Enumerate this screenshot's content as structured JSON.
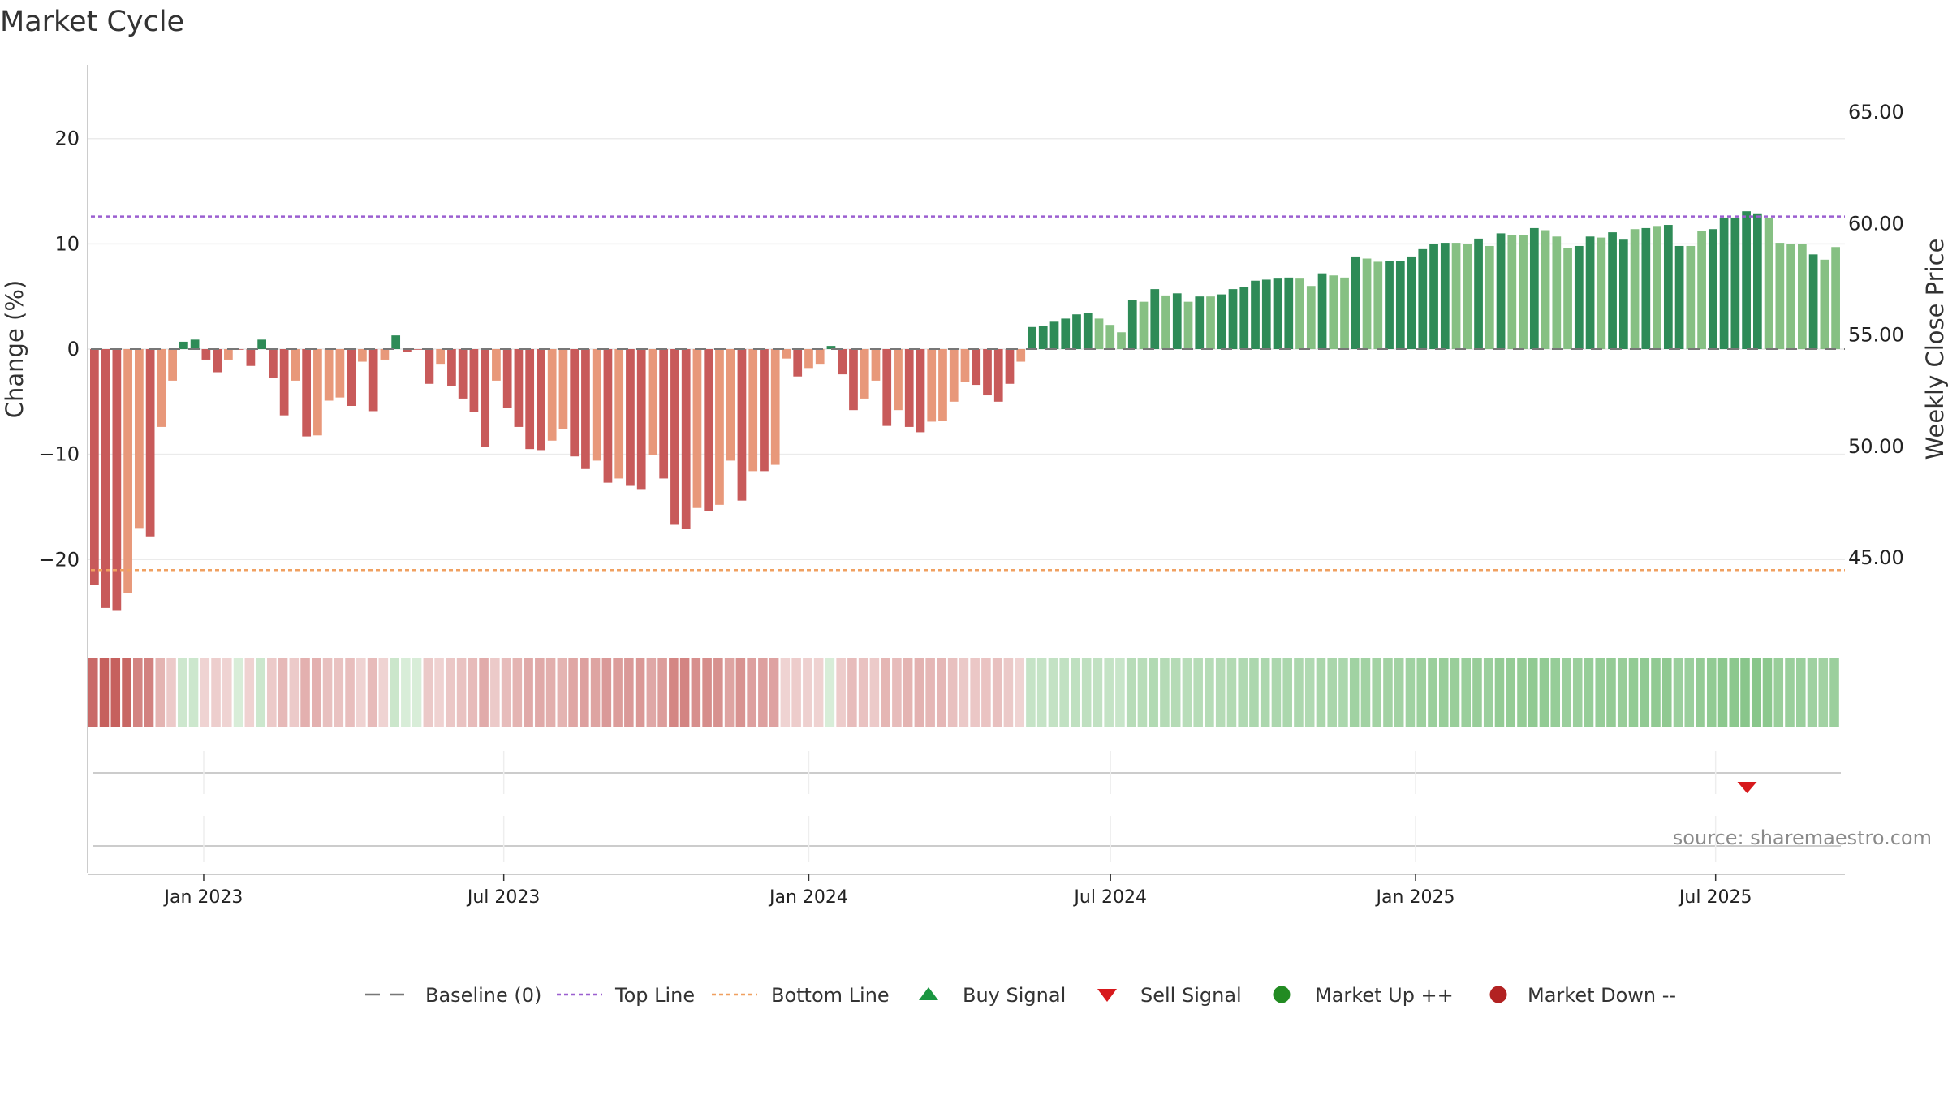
{
  "chart_data": {
    "type": "bar",
    "title": "Market Cycle",
    "ylabel_left": "Change (%)",
    "ylabel_right": "Weekly Close Price",
    "ylim_left": [
      -27,
      27
    ],
    "yticks_left": [
      20,
      10,
      0,
      -10,
      -20
    ],
    "ytick_labels_left": [
      "20",
      "10",
      "0",
      "−10",
      "−20"
    ],
    "ylim_right": [
      41.62,
      67.12
    ],
    "yticks_right": [
      65,
      60,
      55,
      50,
      45
    ],
    "ytick_labels_right": [
      "65.00",
      "60.00",
      "55.00",
      "50.00",
      "45.00"
    ],
    "top_line": 12.6,
    "bottom_line": -21.0,
    "baseline": 0,
    "date_range": [
      "2022-10-23",
      "2025-09-17"
    ],
    "x_ticks": [
      {
        "date": "2023-01-01",
        "label": "Jan 2023"
      },
      {
        "date": "2023-07-01",
        "label": "Jul 2023"
      },
      {
        "date": "2024-01-01",
        "label": "Jan 2024"
      },
      {
        "date": "2024-07-01",
        "label": "Jul 2024"
      },
      {
        "date": "2025-01-01",
        "label": "Jan 2025"
      },
      {
        "date": "2025-07-01",
        "label": "Jul 2025"
      }
    ],
    "first_week": "2022-10-23",
    "week_values": [
      -22.4,
      -24.6,
      -24.8,
      -23.2,
      -17.0,
      -17.8,
      -7.4,
      -3.0,
      0.7,
      0.9,
      -1.0,
      -2.2,
      -1.0,
      0.0,
      -1.6,
      0.9,
      -2.7,
      -6.3,
      -3.0,
      -8.3,
      -8.2,
      -4.9,
      -4.6,
      -5.4,
      -1.2,
      -5.9,
      -1.0,
      1.3,
      -0.3,
      0.0,
      -3.3,
      -1.4,
      -3.5,
      -4.7,
      -6.0,
      -9.3,
      -3.0,
      -5.6,
      -7.4,
      -9.5,
      -9.6,
      -8.7,
      -7.6,
      -10.2,
      -11.4,
      -10.6,
      -12.7,
      -12.3,
      -13.0,
      -13.3,
      -10.1,
      -12.3,
      -16.7,
      -17.1,
      -15.1,
      -15.4,
      -14.8,
      -10.6,
      -14.4,
      -11.6,
      -11.6,
      -11.0,
      -0.9,
      -2.6,
      -1.8,
      -1.4,
      0.3,
      -2.4,
      -5.8,
      -4.7,
      -3.0,
      -7.3,
      -5.8,
      -7.4,
      -7.9,
      -6.9,
      -6.8,
      -5.0,
      -3.1,
      -3.4,
      -4.4,
      -5.0,
      -3.3,
      -1.2,
      2.1,
      2.2,
      2.6,
      2.9,
      3.3,
      3.4,
      2.9,
      2.3,
      1.6,
      4.7,
      4.5,
      5.7,
      5.1,
      5.3,
      4.5,
      5.0,
      5.0,
      5.2,
      5.7,
      5.9,
      6.5,
      6.6,
      6.7,
      6.8,
      6.7,
      6.0,
      7.2,
      7.0,
      6.8,
      8.8,
      8.6,
      8.3,
      8.4,
      8.4,
      8.8,
      9.5,
      10.0,
      10.1,
      10.1,
      10.0,
      10.5,
      9.8,
      11.0,
      10.8,
      10.8,
      11.5,
      11.3,
      10.7,
      9.6,
      9.8,
      10.7,
      10.6,
      11.1,
      10.4,
      11.4,
      11.5,
      11.7,
      11.8,
      9.8,
      9.8,
      11.2,
      11.4,
      12.5,
      12.5,
      13.1,
      12.9,
      12.5,
      10.1,
      10.0,
      10.0,
      9.0,
      8.5,
      9.7
    ],
    "week_colors": [
      "#c85a5a",
      "#c85a5a",
      "#c85a5a",
      "#e8987a",
      "#e8987a",
      "#c85a5a",
      "#e8987a",
      "#e8987a",
      "#2e8b57",
      "#2e8b57",
      "#c85a5a",
      "#c85a5a",
      "#e8987a",
      "#c85a5a",
      "#c85a5a",
      "#2e8b57",
      "#c85a5a",
      "#c85a5a",
      "#e8987a",
      "#c85a5a",
      "#e8987a",
      "#e8987a",
      "#e8987a",
      "#c85a5a",
      "#e8987a",
      "#c85a5a",
      "#e8987a",
      "#2e8b57",
      "#c85a5a",
      "#c85a5a",
      "#c85a5a",
      "#e8987a",
      "#c85a5a",
      "#c85a5a",
      "#c85a5a",
      "#c85a5a",
      "#e8987a",
      "#c85a5a",
      "#c85a5a",
      "#c85a5a",
      "#c85a5a",
      "#e8987a",
      "#e8987a",
      "#c85a5a",
      "#c85a5a",
      "#e8987a",
      "#c85a5a",
      "#e8987a",
      "#c85a5a",
      "#c85a5a",
      "#e8987a",
      "#c85a5a",
      "#c85a5a",
      "#c85a5a",
      "#e8987a",
      "#c85a5a",
      "#e8987a",
      "#e8987a",
      "#c85a5a",
      "#e8987a",
      "#c85a5a",
      "#e8987a",
      "#e8987a",
      "#c85a5a",
      "#e8987a",
      "#e8987a",
      "#2e8b57",
      "#c85a5a",
      "#c85a5a",
      "#e8987a",
      "#e8987a",
      "#c85a5a",
      "#e8987a",
      "#c85a5a",
      "#c85a5a",
      "#e8987a",
      "#e8987a",
      "#e8987a",
      "#e8987a",
      "#c85a5a",
      "#c85a5a",
      "#c85a5a",
      "#c85a5a",
      "#e8987a",
      "#2e8b57",
      "#2e8b57",
      "#2e8b57",
      "#2e8b57",
      "#2e8b57",
      "#2e8b57",
      "#86c083",
      "#86c083",
      "#86c083",
      "#2e8b57",
      "#86c083",
      "#2e8b57",
      "#86c083",
      "#2e8b57",
      "#86c083",
      "#2e8b57",
      "#86c083",
      "#2e8b57",
      "#2e8b57",
      "#2e8b57",
      "#2e8b57",
      "#2e8b57",
      "#2e8b57",
      "#2e8b57",
      "#86c083",
      "#86c083",
      "#2e8b57",
      "#86c083",
      "#86c083",
      "#2e8b57",
      "#86c083",
      "#86c083",
      "#2e8b57",
      "#2e8b57",
      "#2e8b57",
      "#2e8b57",
      "#2e8b57",
      "#2e8b57",
      "#86c083",
      "#86c083",
      "#2e8b57",
      "#86c083",
      "#2e8b57",
      "#86c083",
      "#86c083",
      "#2e8b57",
      "#86c083",
      "#86c083",
      "#86c083",
      "#2e8b57",
      "#2e8b57",
      "#86c083",
      "#2e8b57",
      "#2e8b57",
      "#86c083",
      "#2e8b57",
      "#86c083",
      "#2e8b57",
      "#2e8b57",
      "#86c083",
      "#86c083",
      "#2e8b57",
      "#2e8b57",
      "#2e8b57",
      "#2e8b57",
      "#2e8b57",
      "#86c083",
      "#86c083",
      "#86c083",
      "#86c083",
      "#2e8b57",
      "#86c083",
      "#86c083",
      "#2e8b57"
    ],
    "sell_signals": [
      {
        "date": "2025-07-20"
      }
    ],
    "buy_signals": [],
    "series": [
      {
        "name": "Baseline (0)",
        "color": "#777777",
        "style": "dashed"
      },
      {
        "name": "Top Line",
        "color": "#9b5fd0",
        "style": "dotted"
      },
      {
        "name": "Bottom Line",
        "color": "#f0a060",
        "style": "dotted"
      },
      {
        "name": "Buy Signal",
        "color": "#1a9641",
        "marker": "triangle-up"
      },
      {
        "name": "Sell Signal",
        "color": "#d7191c",
        "marker": "triangle-down"
      },
      {
        "name": "Market Up ++",
        "color": "#228b22",
        "marker": "circle"
      },
      {
        "name": "Market Down --",
        "color": "#b22222",
        "marker": "circle"
      }
    ],
    "legend_position": "bottom-center"
  },
  "source_text": "source: sharemaestro.com"
}
